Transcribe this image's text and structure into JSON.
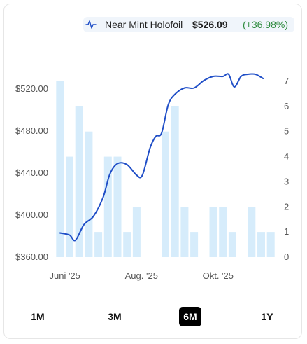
{
  "header": {
    "variant_label": "Near Mint Holofoil",
    "price": "$526.09",
    "change": "(+36.98%)",
    "icon": "line-chart-icon"
  },
  "ranges": {
    "items": [
      "1M",
      "3M",
      "6M",
      "1Y"
    ],
    "selected": "6M"
  },
  "colors": {
    "line": "#1f4ec7",
    "bars": "#d6ecfb",
    "change_positive": "#2e8b3e",
    "active_button": "#000000"
  },
  "chart_data": {
    "type": "line",
    "price_axis": {
      "ticks": [
        "$520.00",
        "$480.00",
        "$440.00",
        "$400.00",
        "$360.00"
      ],
      "values": [
        520,
        480,
        440,
        400,
        360
      ],
      "range": [
        360,
        536
      ]
    },
    "volume_axis": {
      "ticks": [
        "7",
        "6",
        "5",
        "4",
        "3",
        "2",
        "1",
        "0"
      ],
      "values": [
        7,
        6,
        5,
        4,
        3,
        2,
        1,
        0
      ],
      "range": [
        0,
        7
      ]
    },
    "x_ticks": [
      "Juni '25",
      "Aug. '25",
      "Okt. '25"
    ],
    "x_tick_index": [
      0.5,
      8.5,
      16.5
    ],
    "volume_bars": [
      7,
      4,
      6,
      5,
      1,
      4,
      4,
      1,
      2,
      0,
      0,
      5,
      6,
      2,
      1,
      0,
      2,
      2,
      1,
      0,
      2,
      1,
      1
    ],
    "price_series": [
      [
        0.0,
        383
      ],
      [
        1.0,
        381
      ],
      [
        1.6,
        376
      ],
      [
        2.5,
        391
      ],
      [
        3.5,
        399
      ],
      [
        4.5,
        417
      ],
      [
        5.2,
        439
      ],
      [
        6.0,
        449
      ],
      [
        7.0,
        448
      ],
      [
        8.0,
        438
      ],
      [
        8.6,
        438
      ],
      [
        9.4,
        464
      ],
      [
        10.0,
        475
      ],
      [
        10.6,
        478
      ],
      [
        11.3,
        505
      ],
      [
        12.0,
        515
      ],
      [
        13.0,
        521
      ],
      [
        14.0,
        521
      ],
      [
        15.0,
        528
      ],
      [
        16.0,
        532
      ],
      [
        17.0,
        532
      ],
      [
        17.6,
        534
      ],
      [
        18.2,
        522
      ],
      [
        18.9,
        532
      ],
      [
        19.6,
        534
      ],
      [
        20.4,
        534
      ],
      [
        21.2,
        530
      ]
    ]
  }
}
